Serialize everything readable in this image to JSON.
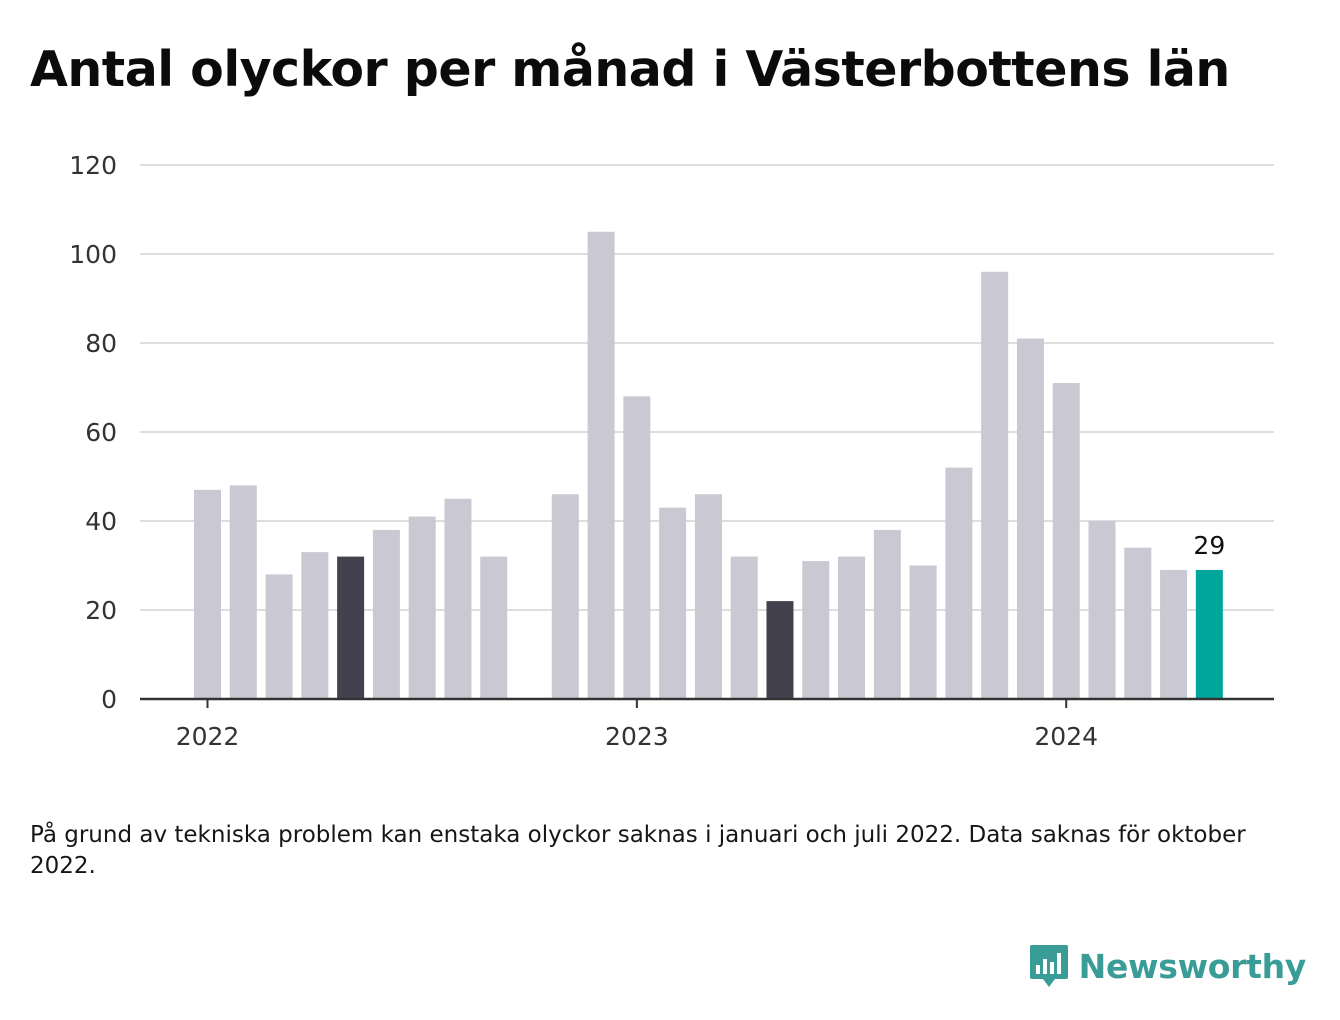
{
  "title": "Antal olyckor per månad i Västerbottens län",
  "footnote": "På grund av tekniska problem kan enstaka olyckor saknas i januari och juli 2022. Data saknas för oktober 2022.",
  "brand": {
    "name": "Newsworthy",
    "icon": "bar-chart-speech-bubble-icon",
    "color": "#3a9c97"
  },
  "colors": {
    "bar": "#c9c8d3",
    "bar_highlight_dark": "#42414d",
    "bar_latest": "#00a59b",
    "grid": "#dedede",
    "axis": "#333333"
  },
  "chart_data": {
    "type": "bar",
    "ylim": [
      0,
      120
    ],
    "yticks": [
      0,
      20,
      40,
      60,
      80,
      100,
      120
    ],
    "xticks": [
      {
        "label": "2022",
        "at": "2022-01"
      },
      {
        "label": "2023",
        "at": "2023-01"
      },
      {
        "label": "2024",
        "at": "2024-01"
      }
    ],
    "grid": true,
    "categories": [
      "2022-01",
      "2022-02",
      "2022-03",
      "2022-04",
      "2022-05",
      "2022-06",
      "2022-07",
      "2022-08",
      "2022-09",
      "2022-10",
      "2022-11",
      "2022-12",
      "2023-01",
      "2023-02",
      "2023-03",
      "2023-04",
      "2023-05",
      "2023-06",
      "2023-07",
      "2023-08",
      "2023-09",
      "2023-10",
      "2023-11",
      "2023-12",
      "2024-01",
      "2024-02",
      "2024-03",
      "2024-04",
      "2024-05"
    ],
    "values": [
      47,
      48,
      28,
      33,
      32,
      38,
      41,
      45,
      32,
      null,
      46,
      105,
      68,
      43,
      46,
      32,
      22,
      31,
      32,
      38,
      30,
      52,
      96,
      81,
      71,
      40,
      34,
      29,
      29
    ],
    "highlight_dark": [
      "2022-05",
      "2023-05"
    ],
    "highlight_latest": "2024-05",
    "value_label": {
      "category": "2024-05",
      "text": "29"
    }
  }
}
